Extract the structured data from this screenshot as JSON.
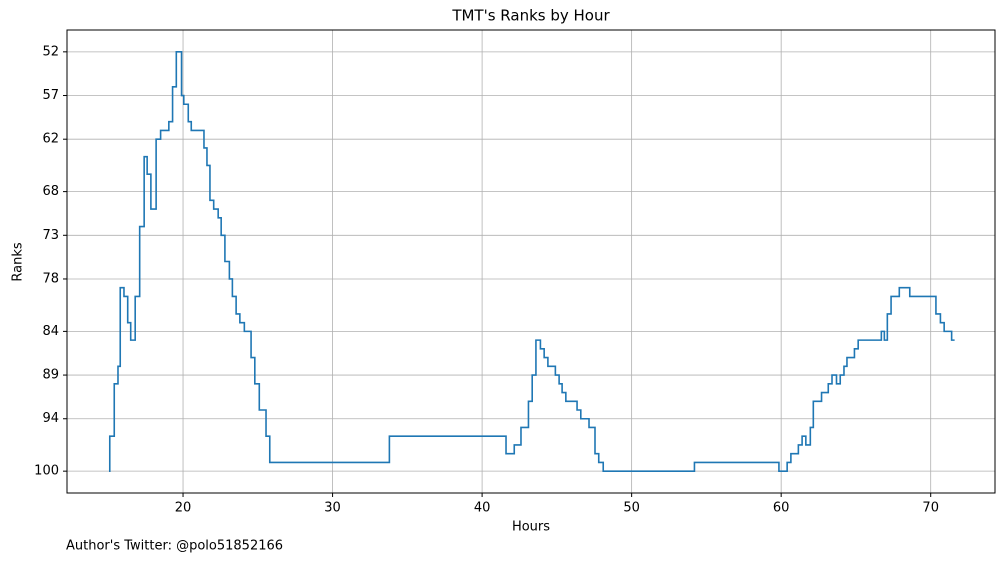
{
  "chart_data": {
    "type": "line",
    "drawstyle": "steps-post",
    "title": "TMT's Ranks by Hour",
    "x_label": "Hours",
    "y_label": "Ranks",
    "footnote": "Author's Twitter: @polo51852166",
    "series": [
      {
        "name": "TMT",
        "color": "#1f77b4",
        "x": [
          15.05,
          15.1,
          15.4,
          15.65,
          15.8,
          16.05,
          16.3,
          16.5,
          16.8,
          17.1,
          17.4,
          17.6,
          17.85,
          18.2,
          18.5,
          19.05,
          19.3,
          19.55,
          19.9,
          20.05,
          20.35,
          20.55,
          21.4,
          21.6,
          21.8,
          22.05,
          22.35,
          22.55,
          22.8,
          23.1,
          23.3,
          23.55,
          23.8,
          24.1,
          24.55,
          24.8,
          25.1,
          25.55,
          25.8,
          33.8,
          41.6,
          42.15,
          42.6,
          43.1,
          43.35,
          43.6,
          43.9,
          44.15,
          44.4,
          44.9,
          45.15,
          45.35,
          45.6,
          46.35,
          46.6,
          47.15,
          47.55,
          47.8,
          48.1,
          54.2,
          59.85,
          60.4,
          60.65,
          61.15,
          61.4,
          61.65,
          61.95,
          62.15,
          62.7,
          63.15,
          63.4,
          63.7,
          63.95,
          64.2,
          64.4,
          64.9,
          65.15,
          66.7,
          66.9,
          67.1,
          67.35,
          67.9,
          68.6,
          70.35,
          70.65,
          70.9,
          71.4,
          71.6
        ],
        "values": [
          100,
          96,
          90,
          88,
          79,
          80,
          83,
          85,
          80,
          72,
          64,
          66,
          70,
          62,
          61,
          60,
          56,
          52,
          57,
          58,
          60,
          61,
          63,
          65,
          69,
          70,
          71,
          73,
          76,
          78,
          80,
          82,
          83,
          84,
          87,
          90,
          93,
          96,
          99,
          96,
          98,
          97,
          95,
          92,
          89,
          85,
          86,
          87,
          88,
          89,
          90,
          91,
          92,
          93,
          94,
          95,
          98,
          99,
          100,
          99,
          100,
          99,
          98,
          97,
          96,
          97,
          95,
          92,
          91,
          90,
          89,
          90,
          89,
          88,
          87,
          86,
          85,
          84,
          85,
          82,
          80,
          79,
          80,
          82,
          83,
          84,
          85,
          85
        ]
      }
    ],
    "xlim": [
      12.24,
      74.3
    ],
    "xticks": [
      20,
      30,
      40,
      50,
      60,
      70
    ],
    "ylim": [
      102.5,
      49.5
    ],
    "yticks": [
      52,
      57,
      62,
      68,
      73,
      78,
      84,
      89,
      94,
      100
    ],
    "grid": true
  }
}
